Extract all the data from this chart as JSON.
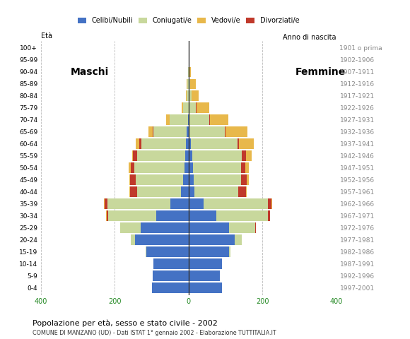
{
  "age_groups": [
    "0-4",
    "5-9",
    "10-14",
    "15-19",
    "20-24",
    "25-29",
    "30-34",
    "35-39",
    "40-44",
    "45-49",
    "50-54",
    "55-59",
    "60-64",
    "65-69",
    "70-74",
    "75-79",
    "80-84",
    "85-89",
    "90-94",
    "95-99",
    "100+"
  ],
  "birth_years": [
    "1997-2001",
    "1992-1996",
    "1987-1991",
    "1982-1986",
    "1977-1981",
    "1972-1976",
    "1967-1971",
    "1962-1966",
    "1957-1961",
    "1952-1956",
    "1947-1951",
    "1942-1946",
    "1937-1941",
    "1932-1936",
    "1927-1931",
    "1922-1926",
    "1917-1921",
    "1912-1916",
    "1907-1911",
    "1902-1906",
    "1901 o prima"
  ],
  "males": {
    "celibi": [
      100,
      98,
      95,
      115,
      145,
      130,
      88,
      50,
      20,
      14,
      12,
      10,
      8,
      5,
      2,
      0,
      0,
      0,
      0,
      0,
      0
    ],
    "coniugati": [
      0,
      0,
      0,
      2,
      12,
      55,
      130,
      170,
      120,
      130,
      135,
      130,
      120,
      90,
      50,
      15,
      5,
      3,
      1,
      0,
      0
    ],
    "vedovi": [
      0,
      0,
      0,
      0,
      0,
      0,
      1,
      1,
      2,
      3,
      5,
      3,
      10,
      12,
      8,
      4,
      3,
      2,
      1,
      0,
      0
    ],
    "divorziati": [
      0,
      0,
      0,
      0,
      0,
      1,
      4,
      8,
      18,
      14,
      10,
      10,
      5,
      2,
      0,
      0,
      0,
      0,
      0,
      0,
      0
    ]
  },
  "females": {
    "nubili": [
      90,
      85,
      90,
      110,
      125,
      110,
      75,
      40,
      15,
      13,
      12,
      10,
      7,
      3,
      1,
      0,
      0,
      0,
      0,
      0,
      0
    ],
    "coniugate": [
      0,
      0,
      0,
      3,
      20,
      70,
      140,
      175,
      120,
      130,
      130,
      135,
      125,
      95,
      55,
      20,
      8,
      5,
      2,
      0,
      0
    ],
    "vedove": [
      0,
      0,
      0,
      0,
      0,
      0,
      1,
      2,
      3,
      5,
      10,
      15,
      40,
      60,
      50,
      35,
      20,
      15,
      5,
      1,
      0
    ],
    "divorziate": [
      0,
      0,
      0,
      0,
      0,
      2,
      5,
      10,
      20,
      15,
      12,
      10,
      5,
      2,
      1,
      1,
      0,
      0,
      0,
      0,
      0
    ]
  },
  "colors": {
    "celibi_nubili": "#4472C4",
    "coniugati": "#C8D89C",
    "vedovi": "#E8B84B",
    "divorziati": "#C0392B"
  },
  "title": "Popolazione per età, sesso e stato civile - 2002",
  "subtitle": "COMUNE DI MANZANO (UD) - Dati ISTAT 1° gennaio 2002 - Elaborazione TUTTITALIA.IT",
  "xlabel_left": "Maschi",
  "xlabel_right": "Femmine",
  "ylabel_left": "Età",
  "ylabel_right": "Anno di nascita",
  "xlim": 400,
  "bar_height": 0.85,
  "bg_color": "#FFFFFF",
  "grid_color": "#BBBBBB"
}
